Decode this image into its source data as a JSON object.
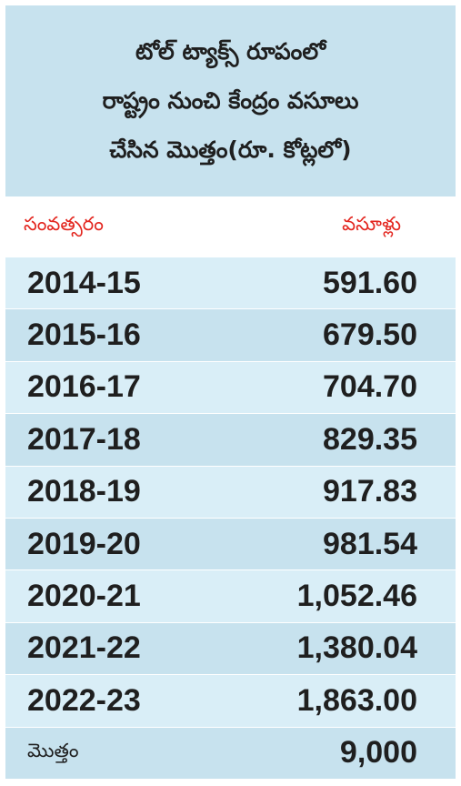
{
  "title_lines": [
    "టోల్ ట్యాక్స్ రూపంలో",
    "రాష్ట్రం నుంచి కేంద్రం వసూలు",
    "చేసిన మొత్తం(రూ. కోట్లలో)"
  ],
  "headers": {
    "year": "సంవత్సరం",
    "amount": "వసూళ్లు"
  },
  "rows": [
    {
      "year": "2014-15",
      "amount": "591.60"
    },
    {
      "year": "2015-16",
      "amount": "679.50"
    },
    {
      "year": "2016-17",
      "amount": "704.70"
    },
    {
      "year": "2017-18",
      "amount": "829.35"
    },
    {
      "year": "2018-19",
      "amount": "917.83"
    },
    {
      "year": "2019-20",
      "amount": "981.54"
    },
    {
      "year": "2020-21",
      "amount": "1,052.46"
    },
    {
      "year": "2021-22",
      "amount": "1,380.04"
    },
    {
      "year": "2022-23",
      "amount": "1,863.00"
    }
  ],
  "total": {
    "label": "మొత్తం",
    "amount": "9,000"
  },
  "colors": {
    "title_bg": "#c7e2ee",
    "row_light": "#d9eef7",
    "row_dark": "#c7e2ee",
    "header_text": "#e3261f"
  },
  "chart_data": {
    "type": "table",
    "title": "టోల్ ట్యాక్స్ రూపంలో రాష్ట్రం నుంచి కేంద్రం వసూలు చేసిన మొత్తం(రూ. కోట్లలో)",
    "columns": [
      "సంవత్సరం",
      "వసూళ్లు"
    ],
    "categories": [
      "2014-15",
      "2015-16",
      "2016-17",
      "2017-18",
      "2018-19",
      "2019-20",
      "2020-21",
      "2021-22",
      "2022-23"
    ],
    "values": [
      591.6,
      679.5,
      704.7,
      829.35,
      917.83,
      981.54,
      1052.46,
      1380.04,
      1863.0
    ],
    "total": 9000
  }
}
